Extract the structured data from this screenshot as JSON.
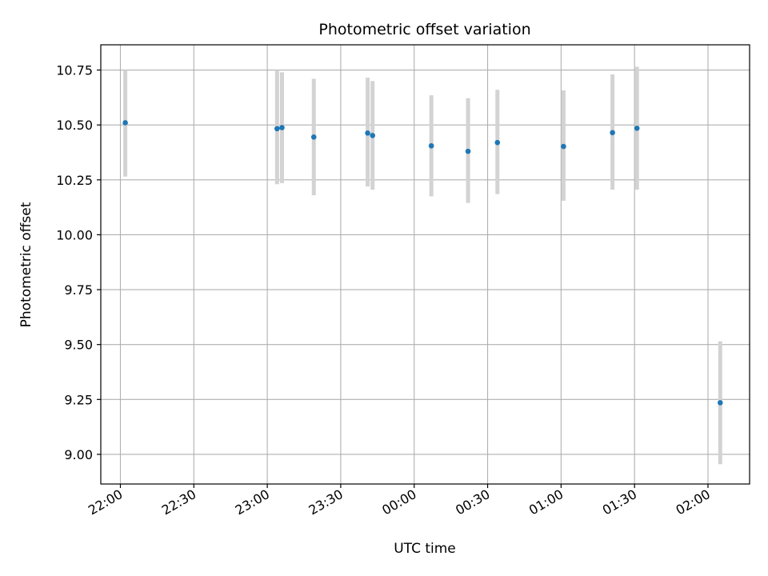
{
  "chart_data": {
    "type": "scatter",
    "title": "Photometric offset variation",
    "xlabel": "UTC time",
    "ylabel": "Photometric offset",
    "grid": true,
    "xlim": [
      "21:52",
      "02:17"
    ],
    "ylim": [
      8.865,
      10.865
    ],
    "x_ticks": [
      "22:00",
      "22:30",
      "23:00",
      "23:30",
      "00:00",
      "00:30",
      "01:00",
      "01:30",
      "02:00"
    ],
    "y_ticks": [
      "9.00",
      "9.25",
      "9.50",
      "9.75",
      "10.00",
      "10.25",
      "10.50",
      "10.75"
    ],
    "point_color": "#1f77b4",
    "errorbar_color": "#d3d3d3",
    "points": [
      {
        "x": "22:02",
        "y": 10.51,
        "y_low": 10.265,
        "y_high": 10.75
      },
      {
        "x": "23:04",
        "y": 10.483,
        "y_low": 10.23,
        "y_high": 10.75
      },
      {
        "x": "23:06",
        "y": 10.488,
        "y_low": 10.235,
        "y_high": 10.74
      },
      {
        "x": "23:19",
        "y": 10.445,
        "y_low": 10.18,
        "y_high": 10.71
      },
      {
        "x": "23:41",
        "y": 10.463,
        "y_low": 10.22,
        "y_high": 10.715
      },
      {
        "x": "23:43",
        "y": 10.452,
        "y_low": 10.205,
        "y_high": 10.7
      },
      {
        "x": "00:07",
        "y": 10.405,
        "y_low": 10.175,
        "y_high": 10.635
      },
      {
        "x": "00:22",
        "y": 10.38,
        "y_low": 10.145,
        "y_high": 10.622
      },
      {
        "x": "00:34",
        "y": 10.42,
        "y_low": 10.185,
        "y_high": 10.66
      },
      {
        "x": "01:01",
        "y": 10.402,
        "y_low": 10.155,
        "y_high": 10.658
      },
      {
        "x": "01:21",
        "y": 10.465,
        "y_low": 10.205,
        "y_high": 10.73
      },
      {
        "x": "01:31",
        "y": 10.485,
        "y_low": 10.205,
        "y_high": 10.765
      },
      {
        "x": "02:05",
        "y": 9.235,
        "y_low": 8.955,
        "y_high": 9.515
      }
    ]
  }
}
